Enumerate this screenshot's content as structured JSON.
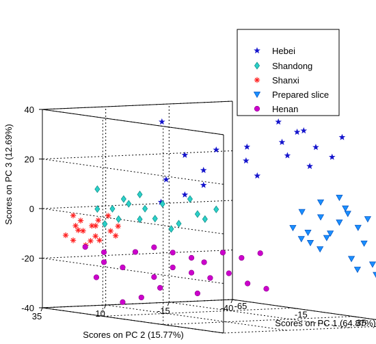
{
  "chart_data": {
    "type": "scatter",
    "projection": "3d",
    "title": "",
    "axes": {
      "x": {
        "label": "Scores on PC 1 (64.87%)",
        "range": [
          -65,
          85
        ],
        "ticks": [
          -65,
          -15,
          35,
          85
        ]
      },
      "y": {
        "label": "Scores on PC 2 (15.77%)",
        "range": [
          -40,
          35
        ],
        "ticks": [
          35,
          10,
          -15,
          -40
        ]
      },
      "z": {
        "label": "Scores on PC 3 (12.69%)",
        "range": [
          -40,
          40
        ],
        "ticks": [
          -40,
          -20,
          0,
          20,
          40
        ]
      }
    },
    "grid": true,
    "legend_position": "top-right",
    "series": [
      {
        "name": "Hebei",
        "marker": "star",
        "color": "#1414cc",
        "points": [
          [
            -8,
            15,
            38
          ],
          [
            15,
            -20,
            38
          ],
          [
            -10,
            5,
            24
          ],
          [
            -5,
            -5,
            26
          ],
          [
            5,
            -12,
            22
          ],
          [
            10,
            -10,
            28
          ],
          [
            12,
            -25,
            24
          ],
          [
            18,
            -20,
            30
          ],
          [
            20,
            -25,
            34
          ],
          [
            25,
            -30,
            28
          ],
          [
            28,
            -35,
            24
          ],
          [
            15,
            -30,
            34
          ],
          [
            8,
            -15,
            16
          ],
          [
            -5,
            0,
            12
          ],
          [
            -15,
            10,
            14
          ],
          [
            -10,
            5,
            8
          ],
          [
            -15,
            12,
            5
          ],
          [
            -5,
            0,
            18
          ],
          [
            20,
            -30,
            20
          ],
          [
            30,
            -38,
            32
          ]
        ]
      },
      {
        "name": "Shandong",
        "marker": "diamond",
        "color": "#2ad0c8",
        "points": [
          [
            -30,
            30,
            10
          ],
          [
            -25,
            22,
            6
          ],
          [
            -20,
            18,
            8
          ],
          [
            -25,
            20,
            4
          ],
          [
            -28,
            25,
            2
          ],
          [
            -22,
            15,
            2
          ],
          [
            -18,
            10,
            4
          ],
          [
            -20,
            18,
            -2
          ],
          [
            -15,
            5,
            -4
          ],
          [
            -10,
            0,
            0
          ],
          [
            -5,
            -5,
            2
          ],
          [
            -25,
            24,
            -2
          ],
          [
            -28,
            28,
            -4
          ],
          [
            -15,
            8,
            -6
          ],
          [
            -8,
            -2,
            -2
          ],
          [
            -20,
            12,
            -2
          ],
          [
            -12,
            2,
            6
          ],
          [
            -30,
            30,
            2
          ]
        ]
      },
      {
        "name": "Shanxi",
        "marker": "asterisk",
        "color": "#ff2020",
        "points": [
          [
            -50,
            30,
            -2
          ],
          [
            -48,
            28,
            -4
          ],
          [
            -45,
            25,
            -6
          ],
          [
            -50,
            28,
            -8
          ],
          [
            -42,
            25,
            -10
          ],
          [
            -45,
            22,
            -12
          ],
          [
            -40,
            20,
            -8
          ],
          [
            -52,
            32,
            -10
          ],
          [
            -48,
            26,
            -14
          ],
          [
            -44,
            24,
            -6
          ],
          [
            -46,
            22,
            -4
          ],
          [
            -42,
            20,
            -2
          ],
          [
            -50,
            30,
            -12
          ],
          [
            -40,
            18,
            -10
          ],
          [
            -48,
            30,
            -6
          ],
          [
            -44,
            26,
            -12
          ],
          [
            -38,
            18,
            -6
          ],
          [
            -46,
            28,
            -8
          ]
        ]
      },
      {
        "name": "Prepared slice",
        "marker": "triangle-down",
        "color": "#1a8fff",
        "points": [
          [
            55,
            -25,
            10
          ],
          [
            50,
            -20,
            8
          ],
          [
            60,
            -25,
            6
          ],
          [
            45,
            -15,
            4
          ],
          [
            50,
            -20,
            2
          ],
          [
            55,
            -25,
            0
          ],
          [
            60,
            -30,
            -2
          ],
          [
            50,
            -15,
            -4
          ],
          [
            55,
            -20,
            -6
          ],
          [
            65,
            -30,
            -8
          ],
          [
            70,
            -35,
            -10
          ],
          [
            75,
            -35,
            -12
          ],
          [
            65,
            -25,
            -14
          ],
          [
            70,
            -25,
            -18
          ],
          [
            75,
            -30,
            -20
          ],
          [
            80,
            -35,
            -22
          ],
          [
            60,
            -15,
            -10
          ],
          [
            55,
            -10,
            -6
          ],
          [
            48,
            -10,
            -2
          ],
          [
            58,
            -20,
            -4
          ],
          [
            62,
            -25,
            4
          ],
          [
            68,
            -30,
            2
          ],
          [
            52,
            -15,
            -8
          ],
          [
            72,
            -30,
            -16
          ]
        ]
      },
      {
        "name": "Henan",
        "marker": "circle",
        "color": "#cc00cc",
        "points": [
          [
            -40,
            30,
            -14
          ],
          [
            -35,
            25,
            -16
          ],
          [
            -30,
            15,
            -16
          ],
          [
            -25,
            10,
            -14
          ],
          [
            -20,
            5,
            -16
          ],
          [
            -15,
            0,
            -18
          ],
          [
            -10,
            -10,
            -16
          ],
          [
            -5,
            -15,
            -18
          ],
          [
            0,
            -20,
            -16
          ],
          [
            -30,
            20,
            -22
          ],
          [
            -35,
            25,
            -20
          ],
          [
            -20,
            5,
            -22
          ],
          [
            -15,
            0,
            -24
          ],
          [
            -10,
            -5,
            -26
          ],
          [
            -5,
            -10,
            -24
          ],
          [
            0,
            -15,
            -28
          ],
          [
            5,
            -20,
            -30
          ],
          [
            -25,
            15,
            -34
          ],
          [
            -30,
            20,
            -36
          ],
          [
            -20,
            10,
            -30
          ],
          [
            -10,
            0,
            -32
          ],
          [
            -35,
            28,
            -26
          ],
          [
            -15,
            -5,
            -20
          ],
          [
            -25,
            10,
            -26
          ]
        ]
      }
    ]
  },
  "legend": {
    "items": [
      "Hebei",
      "Shandong",
      "Shanxi",
      "Prepared slice",
      "Henan"
    ]
  }
}
